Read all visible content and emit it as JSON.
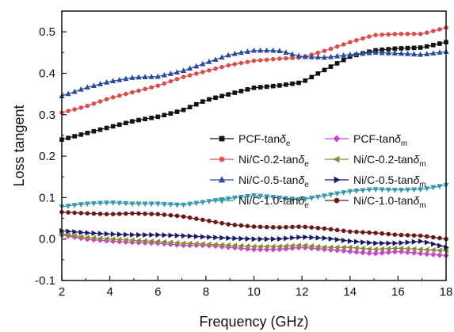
{
  "chart_data": {
    "type": "line",
    "xlabel": "Frequency (GHz)",
    "ylabel": "Loss tangent",
    "xlim": [
      2,
      18
    ],
    "ylim": [
      -0.1,
      0.55
    ],
    "xticks": [
      "2",
      "4",
      "6",
      "8",
      "10",
      "12",
      "14",
      "16",
      "18"
    ],
    "yticks": [
      "-0.1",
      "0.0",
      "0.1",
      "0.2",
      "0.3",
      "0.4",
      "0.5"
    ],
    "legend_position": "center-right",
    "grid": false,
    "series": [
      {
        "name": "PCF-tan",
        "subscript": "e",
        "color": "#111111",
        "marker": "square",
        "x": [
          2,
          3,
          4,
          5,
          6,
          7,
          8,
          9,
          10,
          11,
          12,
          13,
          14,
          15,
          16,
          17,
          18
        ],
        "values": [
          0.24,
          0.255,
          0.27,
          0.285,
          0.295,
          0.31,
          0.335,
          0.35,
          0.365,
          0.37,
          0.378,
          0.41,
          0.44,
          0.455,
          0.46,
          0.462,
          0.475
        ]
      },
      {
        "name": "PCF-tan",
        "subscript": "m",
        "color": "#cc44cc",
        "marker": "diamond",
        "x": [
          2,
          3,
          4,
          5,
          6,
          7,
          8,
          9,
          10,
          11,
          12,
          13,
          14,
          15,
          16,
          17,
          18
        ],
        "values": [
          0.01,
          0.0,
          -0.005,
          -0.008,
          -0.01,
          -0.015,
          -0.015,
          -0.02,
          -0.025,
          -0.025,
          -0.02,
          -0.025,
          -0.03,
          -0.035,
          -0.03,
          -0.035,
          -0.04
        ]
      },
      {
        "name": "Ni/C-0.2-tan",
        "subscript": "e",
        "color": "#d65050",
        "marker": "circle",
        "x": [
          2,
          3,
          4,
          5,
          6,
          7,
          8,
          9,
          10,
          11,
          12,
          13,
          14,
          15,
          16,
          17,
          18
        ],
        "values": [
          0.305,
          0.32,
          0.34,
          0.355,
          0.37,
          0.39,
          0.405,
          0.42,
          0.43,
          0.435,
          0.438,
          0.455,
          0.475,
          0.492,
          0.495,
          0.495,
          0.51
        ]
      },
      {
        "name": "Ni/C-0.2-tan",
        "subscript": "m",
        "color": "#8a8a3a",
        "marker": "triangle-left",
        "x": [
          2,
          3,
          4,
          5,
          6,
          7,
          8,
          9,
          10,
          11,
          12,
          13,
          14,
          15,
          16,
          17,
          18
        ],
        "values": [
          0.012,
          0.004,
          0.0,
          -0.003,
          -0.006,
          -0.01,
          -0.012,
          -0.015,
          -0.018,
          -0.018,
          -0.015,
          -0.02,
          -0.02,
          -0.025,
          -0.022,
          -0.025,
          -0.028
        ]
      },
      {
        "name": "Ni/C-0.5-tan",
        "subscript": "e",
        "color": "#2b4b9b",
        "marker": "triangle-up",
        "x": [
          2,
          3,
          4,
          5,
          6,
          7,
          8,
          9,
          10,
          11,
          12,
          13,
          14,
          15,
          16,
          17,
          18
        ],
        "values": [
          0.345,
          0.365,
          0.38,
          0.39,
          0.392,
          0.405,
          0.425,
          0.445,
          0.455,
          0.455,
          0.44,
          0.438,
          0.445,
          0.45,
          0.448,
          0.445,
          0.452
        ]
      },
      {
        "name": "Ni/C-0.5-tan",
        "subscript": "m",
        "color": "#1a1a66",
        "marker": "triangle-right",
        "x": [
          2,
          3,
          4,
          5,
          6,
          7,
          8,
          9,
          10,
          11,
          12,
          13,
          14,
          15,
          16,
          17,
          18
        ],
        "values": [
          0.02,
          0.015,
          0.012,
          0.01,
          0.01,
          0.008,
          0.005,
          0.002,
          0.0,
          0.0,
          0.005,
          0.002,
          -0.005,
          -0.01,
          -0.01,
          -0.005,
          -0.02
        ]
      },
      {
        "name": "Ni/C-1.0-tan",
        "subscript": "e",
        "color": "#3a9aa8",
        "marker": "triangle-down",
        "x": [
          2,
          3,
          4,
          5,
          6,
          7,
          8,
          9,
          10,
          11,
          12,
          13,
          14,
          15,
          16,
          17,
          18
        ],
        "values": [
          0.078,
          0.085,
          0.088,
          0.085,
          0.085,
          0.082,
          0.09,
          0.098,
          0.105,
          0.1,
          0.095,
          0.105,
          0.115,
          0.12,
          0.118,
          0.12,
          0.13
        ]
      },
      {
        "name": "Ni/C-1.0-tan",
        "subscript": "m",
        "color": "#6b1a1a",
        "marker": "circle",
        "x": [
          2,
          3,
          4,
          5,
          6,
          7,
          8,
          9,
          10,
          11,
          12,
          13,
          14,
          15,
          16,
          17,
          18
        ],
        "values": [
          0.065,
          0.062,
          0.06,
          0.062,
          0.06,
          0.055,
          0.045,
          0.035,
          0.03,
          0.028,
          0.03,
          0.025,
          0.018,
          0.015,
          0.01,
          0.008,
          0.0
        ]
      }
    ]
  }
}
